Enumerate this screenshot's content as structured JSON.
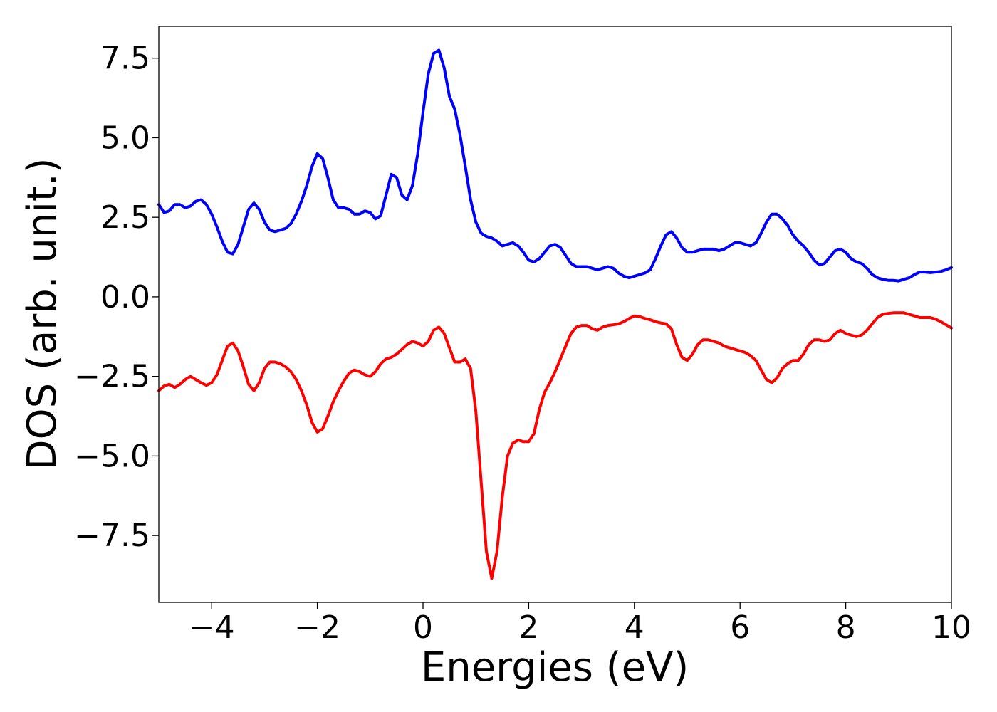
{
  "chart_data": {
    "type": "line",
    "title": "",
    "xlabel": "Energies (eV)",
    "ylabel": "DOS (arb. unit.)",
    "xlim": [
      -5,
      10
    ],
    "ylim": [
      -9.6,
      8.5
    ],
    "grid": false,
    "legend": "none",
    "x_ticks": [
      -4,
      -2,
      0,
      2,
      4,
      6,
      8,
      10
    ],
    "x_tick_labels": [
      "−4",
      "−2",
      "0",
      "2",
      "4",
      "6",
      "8",
      "10"
    ],
    "y_ticks": [
      7.5,
      5.0,
      2.5,
      0.0,
      -2.5,
      -5.0,
      -7.5
    ],
    "y_tick_labels": [
      "7.5",
      "5.0",
      "2.5",
      "0.0",
      "−2.5",
      "−5.0",
      "−7.5"
    ],
    "series": [
      {
        "color": "#0000ff",
        "points": [
          [
            -5.0,
            2.9
          ],
          [
            -4.9,
            2.65
          ],
          [
            -4.8,
            2.7
          ],
          [
            -4.7,
            2.9
          ],
          [
            -4.6,
            2.9
          ],
          [
            -4.5,
            2.8
          ],
          [
            -4.4,
            2.85
          ],
          [
            -4.3,
            3.0
          ],
          [
            -4.2,
            3.05
          ],
          [
            -4.1,
            2.9
          ],
          [
            -4.0,
            2.6
          ],
          [
            -3.9,
            2.2
          ],
          [
            -3.8,
            1.75
          ],
          [
            -3.7,
            1.4
          ],
          [
            -3.6,
            1.35
          ],
          [
            -3.5,
            1.65
          ],
          [
            -3.4,
            2.2
          ],
          [
            -3.3,
            2.75
          ],
          [
            -3.2,
            2.95
          ],
          [
            -3.1,
            2.75
          ],
          [
            -3.0,
            2.35
          ],
          [
            -2.9,
            2.1
          ],
          [
            -2.8,
            2.05
          ],
          [
            -2.7,
            2.1
          ],
          [
            -2.6,
            2.15
          ],
          [
            -2.5,
            2.3
          ],
          [
            -2.4,
            2.6
          ],
          [
            -2.3,
            3.0
          ],
          [
            -2.2,
            3.5
          ],
          [
            -2.1,
            4.1
          ],
          [
            -2.0,
            4.5
          ],
          [
            -1.9,
            4.35
          ],
          [
            -1.8,
            3.75
          ],
          [
            -1.7,
            3.05
          ],
          [
            -1.6,
            2.8
          ],
          [
            -1.5,
            2.8
          ],
          [
            -1.4,
            2.75
          ],
          [
            -1.3,
            2.6
          ],
          [
            -1.2,
            2.6
          ],
          [
            -1.1,
            2.7
          ],
          [
            -1.0,
            2.65
          ],
          [
            -0.9,
            2.45
          ],
          [
            -0.8,
            2.55
          ],
          [
            -0.7,
            3.2
          ],
          [
            -0.6,
            3.85
          ],
          [
            -0.5,
            3.75
          ],
          [
            -0.4,
            3.2
          ],
          [
            -0.3,
            3.05
          ],
          [
            -0.2,
            3.5
          ],
          [
            -0.1,
            4.5
          ],
          [
            0.0,
            5.8
          ],
          [
            0.1,
            7.0
          ],
          [
            0.2,
            7.65
          ],
          [
            0.3,
            7.75
          ],
          [
            0.4,
            7.2
          ],
          [
            0.5,
            6.3
          ],
          [
            0.6,
            5.9
          ],
          [
            0.7,
            5.1
          ],
          [
            0.8,
            4.1
          ],
          [
            0.9,
            3.05
          ],
          [
            1.0,
            2.35
          ],
          [
            1.1,
            2.0
          ],
          [
            1.2,
            1.9
          ],
          [
            1.3,
            1.85
          ],
          [
            1.4,
            1.75
          ],
          [
            1.5,
            1.6
          ],
          [
            1.6,
            1.65
          ],
          [
            1.7,
            1.7
          ],
          [
            1.8,
            1.6
          ],
          [
            1.9,
            1.4
          ],
          [
            2.0,
            1.15
          ],
          [
            2.1,
            1.1
          ],
          [
            2.2,
            1.2
          ],
          [
            2.3,
            1.4
          ],
          [
            2.4,
            1.6
          ],
          [
            2.5,
            1.65
          ],
          [
            2.6,
            1.55
          ],
          [
            2.7,
            1.3
          ],
          [
            2.8,
            1.05
          ],
          [
            2.9,
            0.95
          ],
          [
            3.0,
            0.95
          ],
          [
            3.1,
            0.95
          ],
          [
            3.2,
            0.9
          ],
          [
            3.3,
            0.85
          ],
          [
            3.4,
            0.9
          ],
          [
            3.5,
            0.95
          ],
          [
            3.6,
            0.9
          ],
          [
            3.7,
            0.75
          ],
          [
            3.8,
            0.65
          ],
          [
            3.9,
            0.6
          ],
          [
            4.0,
            0.65
          ],
          [
            4.1,
            0.7
          ],
          [
            4.2,
            0.75
          ],
          [
            4.3,
            0.85
          ],
          [
            4.4,
            1.2
          ],
          [
            4.5,
            1.6
          ],
          [
            4.6,
            1.95
          ],
          [
            4.7,
            2.05
          ],
          [
            4.8,
            1.85
          ],
          [
            4.9,
            1.55
          ],
          [
            5.0,
            1.4
          ],
          [
            5.1,
            1.4
          ],
          [
            5.2,
            1.45
          ],
          [
            5.3,
            1.5
          ],
          [
            5.4,
            1.5
          ],
          [
            5.5,
            1.5
          ],
          [
            5.6,
            1.45
          ],
          [
            5.7,
            1.5
          ],
          [
            5.8,
            1.6
          ],
          [
            5.9,
            1.7
          ],
          [
            6.0,
            1.7
          ],
          [
            6.1,
            1.65
          ],
          [
            6.2,
            1.6
          ],
          [
            6.3,
            1.7
          ],
          [
            6.4,
            2.0
          ],
          [
            6.5,
            2.35
          ],
          [
            6.6,
            2.6
          ],
          [
            6.7,
            2.6
          ],
          [
            6.8,
            2.45
          ],
          [
            6.9,
            2.25
          ],
          [
            7.0,
            1.95
          ],
          [
            7.1,
            1.75
          ],
          [
            7.2,
            1.6
          ],
          [
            7.3,
            1.4
          ],
          [
            7.4,
            1.15
          ],
          [
            7.5,
            1.0
          ],
          [
            7.6,
            1.05
          ],
          [
            7.7,
            1.25
          ],
          [
            7.8,
            1.45
          ],
          [
            7.9,
            1.5
          ],
          [
            8.0,
            1.4
          ],
          [
            8.1,
            1.2
          ],
          [
            8.2,
            1.1
          ],
          [
            8.3,
            1.05
          ],
          [
            8.4,
            0.9
          ],
          [
            8.5,
            0.7
          ],
          [
            8.6,
            0.6
          ],
          [
            8.7,
            0.55
          ],
          [
            8.8,
            0.52
          ],
          [
            8.9,
            0.52
          ],
          [
            9.0,
            0.5
          ],
          [
            9.1,
            0.55
          ],
          [
            9.2,
            0.6
          ],
          [
            9.3,
            0.7
          ],
          [
            9.4,
            0.78
          ],
          [
            9.5,
            0.78
          ],
          [
            9.6,
            0.76
          ],
          [
            9.7,
            0.78
          ],
          [
            9.8,
            0.8
          ],
          [
            9.9,
            0.85
          ],
          [
            10.0,
            0.92
          ]
        ]
      },
      {
        "color": "#ff0000",
        "points": [
          [
            -5.0,
            -2.95
          ],
          [
            -4.9,
            -2.8
          ],
          [
            -4.8,
            -2.75
          ],
          [
            -4.7,
            -2.85
          ],
          [
            -4.6,
            -2.75
          ],
          [
            -4.5,
            -2.6
          ],
          [
            -4.4,
            -2.5
          ],
          [
            -4.3,
            -2.6
          ],
          [
            -4.2,
            -2.7
          ],
          [
            -4.1,
            -2.78
          ],
          [
            -4.0,
            -2.7
          ],
          [
            -3.9,
            -2.45
          ],
          [
            -3.8,
            -2.0
          ],
          [
            -3.7,
            -1.55
          ],
          [
            -3.6,
            -1.45
          ],
          [
            -3.5,
            -1.7
          ],
          [
            -3.4,
            -2.2
          ],
          [
            -3.3,
            -2.75
          ],
          [
            -3.2,
            -2.95
          ],
          [
            -3.1,
            -2.7
          ],
          [
            -3.0,
            -2.25
          ],
          [
            -2.9,
            -2.05
          ],
          [
            -2.8,
            -2.05
          ],
          [
            -2.7,
            -2.1
          ],
          [
            -2.6,
            -2.2
          ],
          [
            -2.5,
            -2.35
          ],
          [
            -2.4,
            -2.6
          ],
          [
            -2.3,
            -2.95
          ],
          [
            -2.2,
            -3.4
          ],
          [
            -2.1,
            -3.95
          ],
          [
            -2.0,
            -4.25
          ],
          [
            -1.9,
            -4.15
          ],
          [
            -1.8,
            -3.75
          ],
          [
            -1.7,
            -3.3
          ],
          [
            -1.6,
            -2.95
          ],
          [
            -1.5,
            -2.65
          ],
          [
            -1.4,
            -2.4
          ],
          [
            -1.3,
            -2.3
          ],
          [
            -1.2,
            -2.35
          ],
          [
            -1.1,
            -2.45
          ],
          [
            -1.0,
            -2.5
          ],
          [
            -0.9,
            -2.35
          ],
          [
            -0.8,
            -2.1
          ],
          [
            -0.7,
            -1.95
          ],
          [
            -0.6,
            -1.9
          ],
          [
            -0.5,
            -1.8
          ],
          [
            -0.4,
            -1.65
          ],
          [
            -0.3,
            -1.5
          ],
          [
            -0.2,
            -1.4
          ],
          [
            -0.1,
            -1.45
          ],
          [
            0.0,
            -1.55
          ],
          [
            0.1,
            -1.4
          ],
          [
            0.2,
            -1.05
          ],
          [
            0.3,
            -0.95
          ],
          [
            0.4,
            -1.15
          ],
          [
            0.5,
            -1.6
          ],
          [
            0.6,
            -2.05
          ],
          [
            0.7,
            -2.05
          ],
          [
            0.8,
            -1.95
          ],
          [
            0.9,
            -2.25
          ],
          [
            1.0,
            -3.6
          ],
          [
            1.1,
            -5.8
          ],
          [
            1.2,
            -8.0
          ],
          [
            1.3,
            -8.85
          ],
          [
            1.4,
            -8.0
          ],
          [
            1.5,
            -6.3
          ],
          [
            1.6,
            -5.0
          ],
          [
            1.7,
            -4.6
          ],
          [
            1.8,
            -4.5
          ],
          [
            1.9,
            -4.55
          ],
          [
            2.0,
            -4.55
          ],
          [
            2.1,
            -4.3
          ],
          [
            2.2,
            -3.55
          ],
          [
            2.3,
            -3.0
          ],
          [
            2.4,
            -2.7
          ],
          [
            2.5,
            -2.35
          ],
          [
            2.6,
            -1.95
          ],
          [
            2.7,
            -1.55
          ],
          [
            2.8,
            -1.15
          ],
          [
            2.9,
            -0.95
          ],
          [
            3.0,
            -0.9
          ],
          [
            3.1,
            -0.9
          ],
          [
            3.2,
            -1.0
          ],
          [
            3.3,
            -1.05
          ],
          [
            3.4,
            -0.95
          ],
          [
            3.5,
            -0.9
          ],
          [
            3.6,
            -0.88
          ],
          [
            3.7,
            -0.85
          ],
          [
            3.8,
            -0.78
          ],
          [
            3.9,
            -0.68
          ],
          [
            4.0,
            -0.6
          ],
          [
            4.1,
            -0.62
          ],
          [
            4.2,
            -0.68
          ],
          [
            4.3,
            -0.72
          ],
          [
            4.4,
            -0.78
          ],
          [
            4.5,
            -0.82
          ],
          [
            4.6,
            -0.85
          ],
          [
            4.7,
            -1.0
          ],
          [
            4.8,
            -1.5
          ],
          [
            4.9,
            -1.9
          ],
          [
            5.0,
            -2.0
          ],
          [
            5.1,
            -1.8
          ],
          [
            5.2,
            -1.5
          ],
          [
            5.3,
            -1.35
          ],
          [
            5.4,
            -1.35
          ],
          [
            5.5,
            -1.4
          ],
          [
            5.6,
            -1.45
          ],
          [
            5.7,
            -1.55
          ],
          [
            5.8,
            -1.6
          ],
          [
            5.9,
            -1.65
          ],
          [
            6.0,
            -1.7
          ],
          [
            6.1,
            -1.75
          ],
          [
            6.2,
            -1.85
          ],
          [
            6.3,
            -2.0
          ],
          [
            6.4,
            -2.3
          ],
          [
            6.5,
            -2.6
          ],
          [
            6.6,
            -2.7
          ],
          [
            6.7,
            -2.55
          ],
          [
            6.8,
            -2.25
          ],
          [
            6.9,
            -2.1
          ],
          [
            7.0,
            -2.0
          ],
          [
            7.1,
            -2.0
          ],
          [
            7.2,
            -1.8
          ],
          [
            7.3,
            -1.5
          ],
          [
            7.4,
            -1.35
          ],
          [
            7.5,
            -1.35
          ],
          [
            7.6,
            -1.4
          ],
          [
            7.7,
            -1.35
          ],
          [
            7.8,
            -1.15
          ],
          [
            7.9,
            -1.05
          ],
          [
            8.0,
            -1.15
          ],
          [
            8.1,
            -1.2
          ],
          [
            8.2,
            -1.25
          ],
          [
            8.3,
            -1.2
          ],
          [
            8.4,
            -1.05
          ],
          [
            8.5,
            -0.85
          ],
          [
            8.6,
            -0.65
          ],
          [
            8.7,
            -0.55
          ],
          [
            8.8,
            -0.52
          ],
          [
            8.9,
            -0.5
          ],
          [
            9.0,
            -0.5
          ],
          [
            9.1,
            -0.5
          ],
          [
            9.2,
            -0.55
          ],
          [
            9.3,
            -0.6
          ],
          [
            9.4,
            -0.65
          ],
          [
            9.5,
            -0.65
          ],
          [
            9.6,
            -0.65
          ],
          [
            9.7,
            -0.7
          ],
          [
            9.8,
            -0.78
          ],
          [
            9.9,
            -0.88
          ],
          [
            10.0,
            -0.98
          ]
        ]
      }
    ]
  }
}
